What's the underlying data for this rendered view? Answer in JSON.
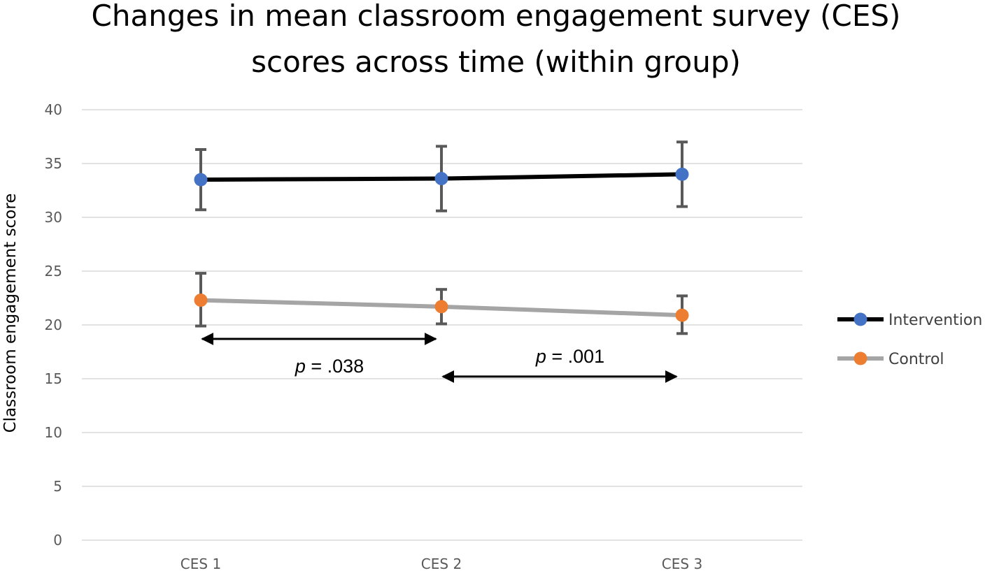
{
  "chart_data": {
    "type": "line",
    "title": [
      "Changes in mean classroom engagement survey (CES)",
      "scores across time (within group)"
    ],
    "xlabel": "",
    "ylabel": "Classroom engagement score",
    "ylim": [
      0,
      40
    ],
    "yticks": [
      0,
      5,
      10,
      15,
      20,
      25,
      30,
      35,
      40
    ],
    "categories": [
      "CES 1",
      "CES 2",
      "CES 3"
    ],
    "grid": true,
    "legend_position": "right",
    "series": [
      {
        "name": "Intervention",
        "values": [
          33.5,
          33.6,
          34.0
        ],
        "error_low": [
          30.7,
          30.6,
          31.0
        ],
        "error_high": [
          36.3,
          36.6,
          37.0
        ],
        "line_color": "#000000",
        "marker_color": "#4472C4"
      },
      {
        "name": "Control",
        "values": [
          22.3,
          21.7,
          20.9
        ],
        "error_low": [
          19.9,
          20.1,
          19.2
        ],
        "error_high": [
          24.8,
          23.3,
          22.7
        ],
        "line_color": "#A5A5A5",
        "marker_color": "#ED7D31"
      }
    ],
    "annotations": [
      {
        "p_label": "p",
        "rest": " = .038",
        "from": "CES 1",
        "to": "CES 2",
        "y": 18.7,
        "label_position": "below"
      },
      {
        "p_label": "p",
        "rest": " = .001",
        "from": "CES 2",
        "to": "CES 3",
        "y": 15.2,
        "label_position": "above"
      }
    ]
  }
}
